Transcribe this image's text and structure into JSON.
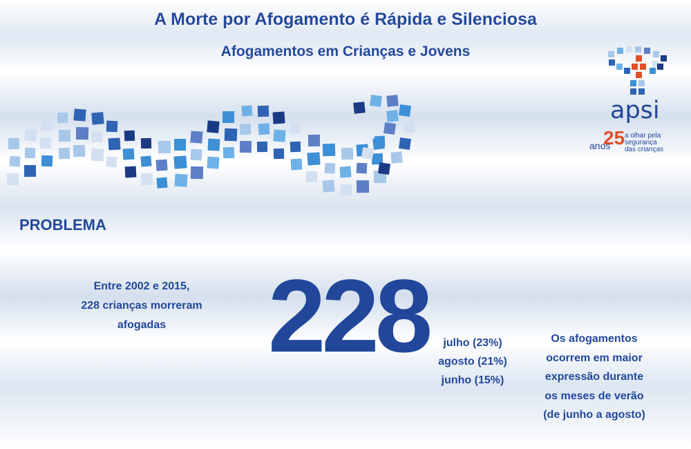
{
  "header": {
    "title": "A Morte por Afogamento é Rápida e Silenciosa",
    "subtitle": "Afogamentos em Crianças e Jovens"
  },
  "logo": {
    "word": "apsi",
    "anos": "anos",
    "number": "25",
    "tagline": [
      "a olhar pela",
      "segurança",
      "das crianças"
    ]
  },
  "section": {
    "heading": "PROBLEMA"
  },
  "stats": {
    "intro_lines": [
      "Entre 2002 e 2015,",
      "228 crianças morreram",
      "afogadas"
    ],
    "big_number": "228",
    "months": [
      "julho (23%)",
      "agosto (21%)",
      "junho (15%)"
    ],
    "summer_lines": [
      "Os afogamentos",
      "ocorrem em maior",
      "expressão durante",
      "os meses de verão",
      "(de junho a agosto)"
    ]
  },
  "colors": {
    "primary": "#22479a",
    "accent_orange": "#e24f2b",
    "tile_palette": [
      "#1b3a86",
      "#2f63b4",
      "#3d8fd6",
      "#6fb1e6",
      "#a8c8ea",
      "#d3e0f1",
      "#5d7fc6"
    ]
  }
}
